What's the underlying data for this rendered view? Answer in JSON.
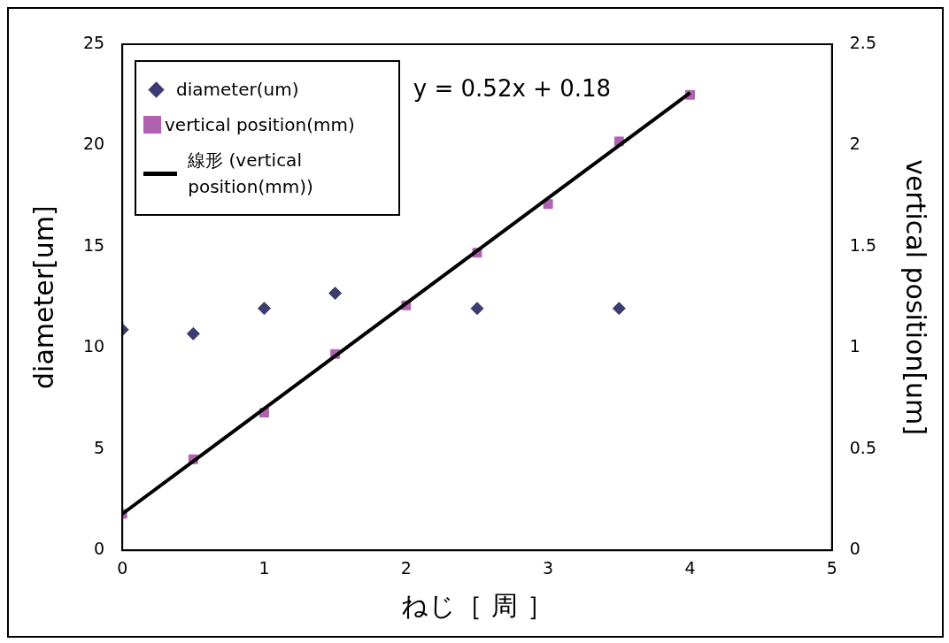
{
  "chart_data": {
    "type": "scatter",
    "xlabel": "ねじ［ 周 ］",
    "ylabel": "diameter[um]",
    "y2label": "vertical position[um]",
    "annotations": [
      "y = 0.52x + 0.18"
    ],
    "xlim": [
      0,
      5
    ],
    "xticks": [
      0,
      1,
      2,
      3,
      4,
      5
    ],
    "ylim": [
      0,
      25
    ],
    "yticks": [
      0,
      5,
      10,
      15,
      20,
      25
    ],
    "y2lim": [
      0,
      2.5
    ],
    "y2ticks": [
      0,
      0.5,
      1,
      1.5,
      2,
      2.5
    ],
    "grid": false,
    "legend": "top left",
    "series": [
      {
        "name": "diameter(um)",
        "type": "scatter",
        "marker": "diamond",
        "color": "#3b3d72",
        "x": [
          0,
          0.5,
          1,
          1.5,
          2.5,
          3.5
        ],
        "values": [
          10.9,
          10.7,
          11.95,
          12.7,
          11.95,
          11.95
        ]
      },
      {
        "name": "vertical position(mm)",
        "type": "scatter",
        "marker": "square",
        "axis": "y2",
        "color": "#b062b0",
        "x": [
          0,
          0.5,
          1,
          1.5,
          2,
          2.5,
          3,
          3.5,
          4
        ],
        "values": [
          0.18,
          0.45,
          0.68,
          0.97,
          1.21,
          1.47,
          1.71,
          2.02,
          2.25
        ]
      },
      {
        "name": "線形 (vertical position(mm))",
        "type": "line",
        "marker": "none",
        "axis": "y2",
        "color": "#000000",
        "x": [
          0,
          4
        ],
        "values": [
          0.18,
          2.26
        ]
      }
    ]
  }
}
